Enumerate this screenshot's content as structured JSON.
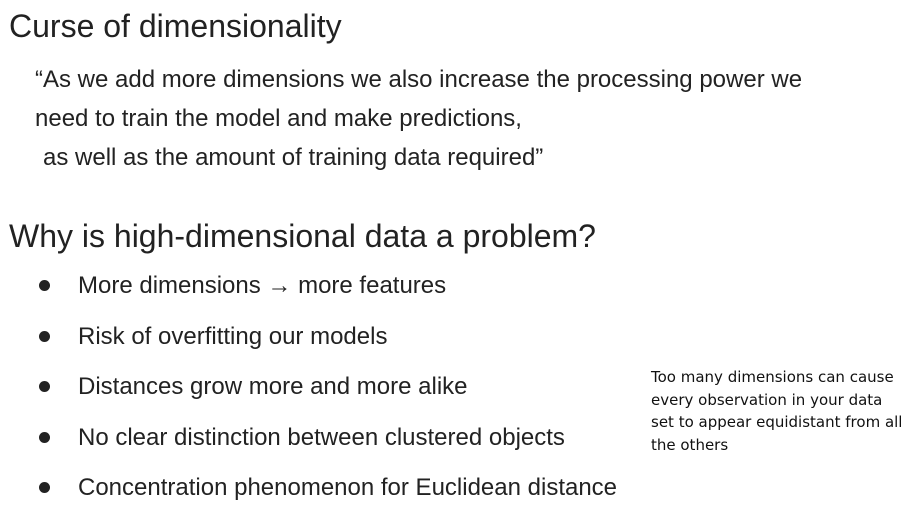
{
  "heading": "Curse of dimensionality",
  "quote": {
    "lines": [
      "“As we add more dimensions we also increase the processing power we",
      "need to train the model and make predictions,",
      "as well as the amount of training data required”"
    ]
  },
  "subheading": "Why is high-dimensional data a problem?",
  "bullets": [
    "More dimensions → more features",
    "Risk of overfitting our models",
    "Distances grow more and more alike",
    "No clear distinction between clustered objects",
    "Concentration phenomenon for Euclidean distance"
  ],
  "note": {
    "lines": [
      "Too many dimensions can cause",
      "every observation in your data",
      "set to appear equidistant from all",
      "the others"
    ]
  }
}
